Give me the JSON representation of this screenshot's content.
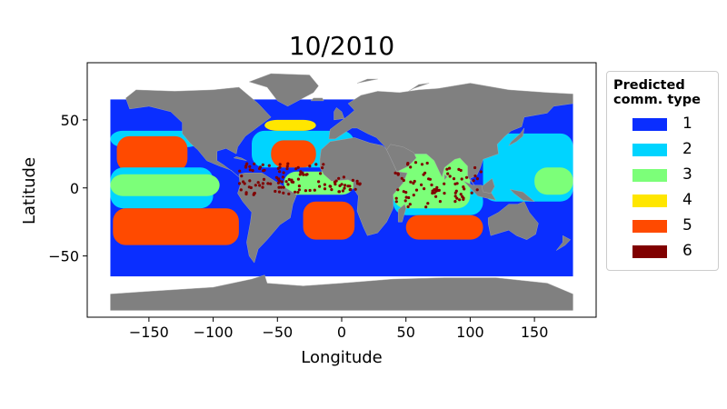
{
  "chart_data": {
    "type": "scatter",
    "title": "10/2010",
    "xlabel": "Longitude",
    "ylabel": "Latitude",
    "xlim": [
      -198,
      198
    ],
    "ylim": [
      -95,
      92
    ],
    "x_ticks": [
      -150,
      -100,
      -50,
      0,
      50,
      100,
      150
    ],
    "y_ticks": [
      -50,
      0,
      50
    ],
    "x_tick_labels": [
      "−150",
      "−100",
      "−50",
      "0",
      "50",
      "100",
      "150"
    ],
    "y_tick_labels": [
      "−50",
      "0",
      "50"
    ],
    "grid": false,
    "legend": {
      "placement": "outside-right",
      "title_lines": [
        "Predicted",
        "comm. type"
      ],
      "entries": [
        {
          "label": "1",
          "color": "#0a2eff"
        },
        {
          "label": "2",
          "color": "#00d4ff"
        },
        {
          "label": "3",
          "color": "#7cff79"
        },
        {
          "label": "4",
          "color": "#ffe600"
        },
        {
          "label": "5",
          "color": "#ff4a00"
        },
        {
          "label": "6",
          "color": "#800000"
        }
      ]
    },
    "land_color": "#808080",
    "regions": [
      {
        "type": "1",
        "lon": [
          -180,
          180
        ],
        "lat": [
          -65,
          65
        ]
      },
      {
        "type": "2",
        "lon": [
          -180,
          -110
        ],
        "lat": [
          30,
          42
        ]
      },
      {
        "type": "5",
        "lon": [
          -175,
          -120
        ],
        "lat": [
          12,
          38
        ]
      },
      {
        "type": "2",
        "lon": [
          -180,
          -100
        ],
        "lat": [
          -15,
          15
        ]
      },
      {
        "type": "3",
        "lon": [
          -180,
          -95
        ],
        "lat": [
          -6,
          10
        ]
      },
      {
        "type": "5",
        "lon": [
          -178,
          -80
        ],
        "lat": [
          -42,
          -15
        ]
      },
      {
        "type": "2",
        "lon": [
          -70,
          10
        ],
        "lat": [
          15,
          42
        ]
      },
      {
        "type": "5",
        "lon": [
          -55,
          -20
        ],
        "lat": [
          15,
          35
        ]
      },
      {
        "type": "3",
        "lon": [
          -45,
          10
        ],
        "lat": [
          -5,
          12
        ]
      },
      {
        "type": "5",
        "lon": [
          -30,
          10
        ],
        "lat": [
          -38,
          -10
        ]
      },
      {
        "type": "2",
        "lon": [
          40,
          110
        ],
        "lat": [
          -20,
          0
        ]
      },
      {
        "type": "3",
        "lon": [
          40,
          100
        ],
        "lat": [
          -15,
          25
        ]
      },
      {
        "type": "5",
        "lon": [
          50,
          110
        ],
        "lat": [
          -38,
          -20
        ]
      },
      {
        "type": "2",
        "lon": [
          110,
          180
        ],
        "lat": [
          -10,
          40
        ]
      },
      {
        "type": "3",
        "lon": [
          150,
          180
        ],
        "lat": [
          -5,
          15
        ]
      },
      {
        "type": "4",
        "lon": [
          -60,
          -20
        ],
        "lat": [
          42,
          50
        ]
      },
      {
        "type": "6",
        "lon": [
          -80,
          110
        ],
        "lat": [
          -15,
          20
        ]
      }
    ]
  }
}
